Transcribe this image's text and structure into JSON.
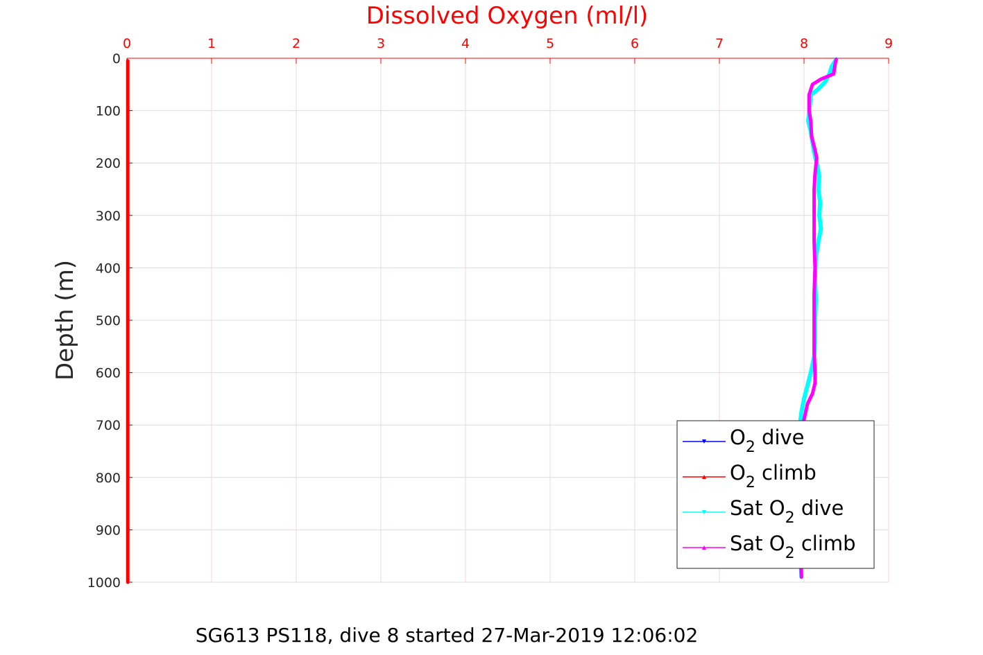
{
  "chart_data": {
    "type": "line",
    "title": "Dissolved Oxygen (ml/l)",
    "ylabel": "Depth (m)",
    "caption": "SG613 PS118, dive 8 started 27-Mar-2019 12:06:02",
    "xlim": [
      0,
      9
    ],
    "ylim": [
      0,
      1000
    ],
    "y_reversed": true,
    "x_axis_position": "top",
    "grid": true,
    "legend_position": "bottom-right",
    "xticks": [
      0,
      1,
      2,
      3,
      4,
      5,
      6,
      7,
      8,
      9
    ],
    "yticks": [
      0,
      100,
      200,
      300,
      400,
      500,
      600,
      700,
      800,
      900,
      1000
    ],
    "series": [
      {
        "name_base": "O",
        "name_sub": "2",
        "name_rest": " dive",
        "color": "#0000ff",
        "marker": "triangle-down",
        "points": [
          [
            0.01,
            5
          ],
          [
            0.01,
            500
          ],
          [
            0.01,
            1000
          ]
        ]
      },
      {
        "name_base": "O",
        "name_sub": "2",
        "name_rest": " climb",
        "color": "#ff0000",
        "marker": "triangle-up",
        "points": [
          [
            0.01,
            1000
          ],
          [
            0.01,
            500
          ],
          [
            0.01,
            5
          ]
        ]
      },
      {
        "name_base": "Sat O",
        "name_sub": "2",
        "name_rest": " dive",
        "color": "#00ffff",
        "marker": "triangle-down",
        "points": [
          [
            8.38,
            2
          ],
          [
            8.33,
            15
          ],
          [
            8.3,
            30
          ],
          [
            8.25,
            45
          ],
          [
            8.16,
            60
          ],
          [
            8.08,
            70
          ],
          [
            8.07,
            90
          ],
          [
            8.05,
            120
          ],
          [
            8.08,
            140
          ],
          [
            8.1,
            160
          ],
          [
            8.12,
            180
          ],
          [
            8.15,
            200
          ],
          [
            8.18,
            225
          ],
          [
            8.17,
            250
          ],
          [
            8.19,
            275
          ],
          [
            8.18,
            300
          ],
          [
            8.2,
            325
          ],
          [
            8.17,
            350
          ],
          [
            8.14,
            380
          ],
          [
            8.13,
            420
          ],
          [
            8.14,
            460
          ],
          [
            8.13,
            500
          ],
          [
            8.13,
            540
          ],
          [
            8.12,
            570
          ],
          [
            8.08,
            600
          ],
          [
            8.04,
            625
          ],
          [
            8.0,
            650
          ],
          [
            7.97,
            675
          ],
          [
            7.95,
            700
          ],
          [
            7.96,
            730
          ],
          [
            7.97,
            760
          ],
          [
            7.96,
            800
          ],
          [
            7.97,
            850
          ],
          [
            7.96,
            900
          ],
          [
            7.96,
            950
          ],
          [
            7.97,
            990
          ]
        ]
      },
      {
        "name_base": "Sat O",
        "name_sub": "2",
        "name_rest": " climb",
        "color": "#ff00ff",
        "marker": "triangle-up",
        "points": [
          [
            7.97,
            990
          ],
          [
            7.96,
            950
          ],
          [
            7.97,
            900
          ],
          [
            7.96,
            850
          ],
          [
            7.97,
            800
          ],
          [
            7.97,
            750
          ],
          [
            7.98,
            720
          ],
          [
            8.0,
            690
          ],
          [
            8.04,
            660
          ],
          [
            8.1,
            640
          ],
          [
            8.13,
            620
          ],
          [
            8.13,
            600
          ],
          [
            8.12,
            560
          ],
          [
            8.12,
            500
          ],
          [
            8.12,
            450
          ],
          [
            8.13,
            400
          ],
          [
            8.12,
            350
          ],
          [
            8.12,
            300
          ],
          [
            8.12,
            250
          ],
          [
            8.13,
            220
          ],
          [
            8.15,
            190
          ],
          [
            8.13,
            175
          ],
          [
            8.09,
            150
          ],
          [
            8.08,
            120
          ],
          [
            8.06,
            100
          ],
          [
            8.06,
            70
          ],
          [
            8.1,
            50
          ],
          [
            8.2,
            40
          ],
          [
            8.35,
            30
          ],
          [
            8.37,
            10
          ],
          [
            8.38,
            2
          ]
        ]
      }
    ]
  }
}
